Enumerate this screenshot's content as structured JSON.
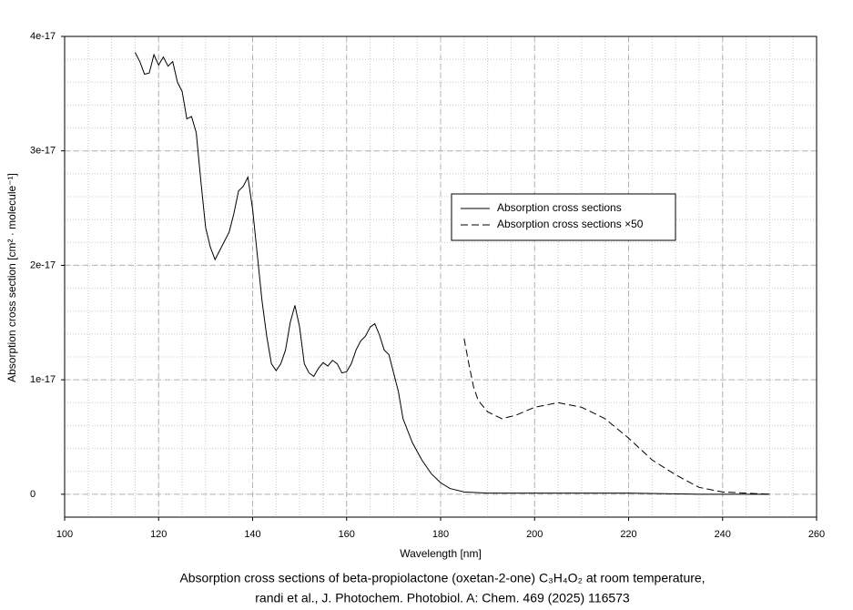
{
  "chart_data": {
    "type": "line",
    "caption": [
      "Absorption cross sections of beta-propiolactone (oxetan-2-one) C₃H₄O₂ at room temperature,",
      "randi et al., J. Photochem. Photobiol. A: Chem. 469 (2025) 116573"
    ],
    "xlabel": "Wavelength [nm]",
    "ylabel": "Absorption cross section [cm² · molecule⁻¹]",
    "xlim": [
      100,
      260
    ],
    "xticks": [
      100,
      120,
      140,
      160,
      180,
      200,
      220,
      240,
      260
    ],
    "ylim": [
      -2e-18,
      4e-17
    ],
    "yticks": [
      0,
      1e-17,
      2e-17,
      3e-17,
      4e-17
    ],
    "grid": true,
    "minor_grid": {
      "x": 5,
      "y": 2e-18
    },
    "legend": "center right",
    "series": [
      {
        "name": "Absorption cross sections",
        "color": "#000000",
        "dash": "solid",
        "x": [
          115,
          116,
          117,
          118,
          119,
          120,
          121,
          122,
          123,
          124,
          125,
          126,
          127,
          128,
          129,
          130,
          131,
          132,
          133,
          134,
          135,
          136,
          137,
          138,
          139,
          140,
          141,
          142,
          143,
          144,
          145,
          146,
          147,
          148,
          149,
          150,
          151,
          152,
          153,
          154,
          155,
          156,
          157,
          158,
          159,
          160,
          161,
          162,
          163,
          164,
          165,
          166,
          167,
          168,
          169,
          170,
          171,
          172,
          174,
          176,
          178,
          180,
          182,
          185,
          190,
          220,
          235,
          250
        ],
        "values": [
          3.86e-17,
          3.78e-17,
          3.67e-17,
          3.68e-17,
          3.84e-17,
          3.75e-17,
          3.82e-17,
          3.74e-17,
          3.78e-17,
          3.6e-17,
          3.52e-17,
          3.28e-17,
          3.3e-17,
          3.16e-17,
          2.73e-17,
          2.33e-17,
          2.16e-17,
          2.05e-17,
          2.13e-17,
          2.21e-17,
          2.29e-17,
          2.45e-17,
          2.65e-17,
          2.69e-17,
          2.77e-17,
          2.49e-17,
          2.09e-17,
          1.69e-17,
          1.38e-17,
          1.14e-17,
          1.08e-17,
          1.14e-17,
          1.26e-17,
          1.5e-17,
          1.65e-17,
          1.46e-17,
          1.14e-17,
          1.06e-17,
          1.03e-17,
          1.1e-17,
          1.15e-17,
          1.12e-17,
          1.17e-17,
          1.14e-17,
          1.06e-17,
          1.07e-17,
          1.14e-17,
          1.26e-17,
          1.34e-17,
          1.38e-17,
          1.46e-17,
          1.49e-17,
          1.39e-17,
          1.26e-17,
          1.22e-17,
          1.06e-17,
          9e-18,
          6.6e-18,
          4.5e-18,
          3e-18,
          1.8e-18,
          1e-18,
          5e-19,
          2e-19,
          1e-19,
          1e-19,
          0,
          0
        ]
      },
      {
        "name": "Absorption cross sections ×50",
        "color": "#000000",
        "dash": "dashed",
        "x": [
          185,
          186,
          187,
          188,
          190,
          193,
          196,
          200,
          205,
          210,
          215,
          220,
          225,
          230,
          235,
          240,
          245,
          250
        ],
        "values": [
          1.36e-17,
          1.14e-17,
          9.4e-18,
          8.2e-18,
          7.2e-18,
          6.6e-18,
          6.9e-18,
          7.6e-18,
          8e-18,
          7.6e-18,
          6.6e-18,
          4.9e-18,
          3e-18,
          1.7e-18,
          6e-19,
          2e-19,
          1e-19,
          0
        ]
      }
    ]
  }
}
